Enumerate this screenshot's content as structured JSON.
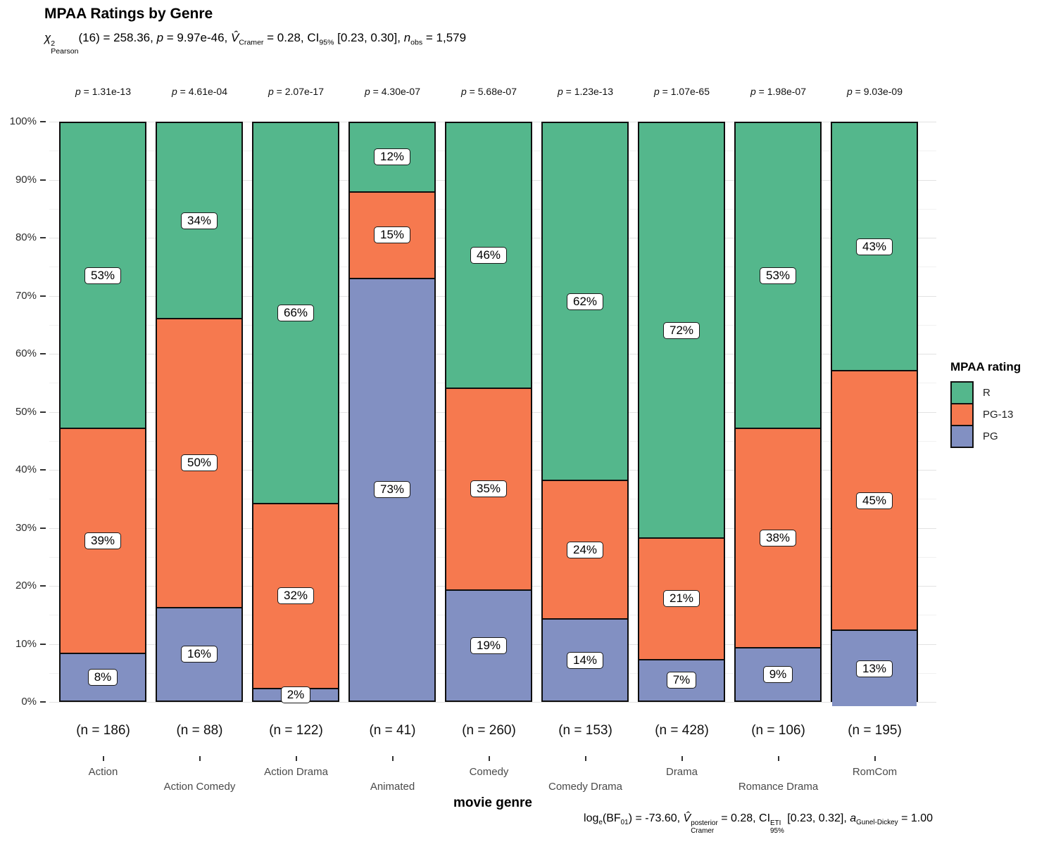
{
  "header": {
    "title": "MPAA Ratings by Genre"
  },
  "subtitle_tokens": [
    {
      "t": "χ",
      "cls": "it"
    },
    {
      "sup": "2",
      "sub": "Pearson"
    },
    {
      "t": "(16) = 258.36, "
    },
    {
      "t": "p",
      "cls": "it"
    },
    {
      "t": " = 9.97e-46, "
    },
    {
      "t": "V̂",
      "cls": "it"
    },
    {
      "sub": "Cramer"
    },
    {
      "t": " = 0.28, CI"
    },
    {
      "sub": "95%"
    },
    {
      "t": " [0.23, 0.30], "
    },
    {
      "t": "n",
      "cls": "it"
    },
    {
      "sub": "obs"
    },
    {
      "t": " = 1,579"
    }
  ],
  "caption_tokens": [
    {
      "t": "log"
    },
    {
      "sub": "e"
    },
    {
      "t": "(BF"
    },
    {
      "sub": "01"
    },
    {
      "t": ") = -73.60, "
    },
    {
      "t": "V̂",
      "cls": "it"
    },
    {
      "sup": "posterior",
      "sub": "Cramer"
    },
    {
      "t": " = 0.28, CI"
    },
    {
      "sup": "ETI",
      "sub": "95%"
    },
    {
      "t": " [0.23, 0.32], "
    },
    {
      "t": "a",
      "cls": "it"
    },
    {
      "sub": "Gunel-Dickey"
    },
    {
      "t": " = 1.00"
    }
  ],
  "p_prefix": "p",
  "legend": {
    "title": "MPAA rating",
    "entries": [
      {
        "label": "R",
        "color": "#54B78C"
      },
      {
        "label": "PG-13",
        "color": "#F6794F"
      },
      {
        "label": "PG",
        "color": "#8290C2"
      }
    ]
  },
  "x_axis": {
    "label": "movie genre"
  },
  "y_axis": {
    "tick_labels": [
      "0%",
      "10%",
      "20%",
      "30%",
      "40%",
      "50%",
      "60%",
      "70%",
      "80%",
      "90%",
      "100%"
    ]
  },
  "chart_data": {
    "type": "bar",
    "subtype": "100%-stacked-vertical",
    "title": "MPAA Ratings by Genre",
    "xlabel": "movie genre",
    "ylabel": "",
    "ylim": [
      0,
      100
    ],
    "grid": "on",
    "legend_position": "right",
    "categories": [
      "Action",
      "Action Comedy",
      "Action Drama",
      "Animated",
      "Comedy",
      "Comedy Drama",
      "Drama",
      "Romance Drama",
      "RomCom"
    ],
    "series": [
      {
        "name": "R",
        "color": "#54B78C",
        "values": [
          53,
          34,
          66,
          12,
          46,
          62,
          72,
          53,
          43
        ]
      },
      {
        "name": "PG-13",
        "color": "#F6794F",
        "values": [
          39,
          50,
          32,
          15,
          35,
          24,
          21,
          38,
          45
        ]
      },
      {
        "name": "PG",
        "color": "#8290C2",
        "values": [
          8,
          16,
          2,
          73,
          19,
          14,
          7,
          9,
          13
        ]
      }
    ],
    "genres": [
      {
        "label": "Action",
        "row": 1,
        "n_label": "(n = 186)",
        "p_value": "= 1.31e-13",
        "segments": [
          {
            "rating": "R",
            "pct": 53,
            "text": "53%"
          },
          {
            "rating": "PG-13",
            "pct": 39,
            "text": "39%"
          },
          {
            "rating": "PG",
            "pct": 8,
            "text": "8%"
          }
        ]
      },
      {
        "label": "Action Comedy",
        "row": 2,
        "n_label": "(n = 88)",
        "p_value": "= 4.61e-04",
        "segments": [
          {
            "rating": "R",
            "pct": 34,
            "text": "34%"
          },
          {
            "rating": "PG-13",
            "pct": 50,
            "text": "50%"
          },
          {
            "rating": "PG",
            "pct": 16,
            "text": "16%"
          }
        ]
      },
      {
        "label": "Action Drama",
        "row": 1,
        "n_label": "(n = 122)",
        "p_value": "= 2.07e-17",
        "segments": [
          {
            "rating": "R",
            "pct": 66,
            "text": "66%"
          },
          {
            "rating": "PG-13",
            "pct": 32,
            "text": "32%"
          },
          {
            "rating": "PG",
            "pct": 2,
            "text": "2%"
          }
        ]
      },
      {
        "label": "Animated",
        "row": 2,
        "n_label": "(n = 41)",
        "p_value": "= 4.30e-07",
        "segments": [
          {
            "rating": "R",
            "pct": 12,
            "text": "12%"
          },
          {
            "rating": "PG-13",
            "pct": 15,
            "text": "15%"
          },
          {
            "rating": "PG",
            "pct": 73,
            "text": "73%"
          }
        ]
      },
      {
        "label": "Comedy",
        "row": 1,
        "n_label": "(n = 260)",
        "p_value": "= 5.68e-07",
        "segments": [
          {
            "rating": "R",
            "pct": 46,
            "text": "46%"
          },
          {
            "rating": "PG-13",
            "pct": 35,
            "text": "35%"
          },
          {
            "rating": "PG",
            "pct": 19,
            "text": "19%"
          }
        ]
      },
      {
        "label": "Comedy Drama",
        "row": 2,
        "n_label": "(n = 153)",
        "p_value": "= 1.23e-13",
        "segments": [
          {
            "rating": "R",
            "pct": 62,
            "text": "62%"
          },
          {
            "rating": "PG-13",
            "pct": 24,
            "text": "24%"
          },
          {
            "rating": "PG",
            "pct": 14,
            "text": "14%"
          }
        ]
      },
      {
        "label": "Drama",
        "row": 1,
        "n_label": "(n = 428)",
        "p_value": "= 1.07e-65",
        "segments": [
          {
            "rating": "R",
            "pct": 72,
            "text": "72%"
          },
          {
            "rating": "PG-13",
            "pct": 21,
            "text": "21%"
          },
          {
            "rating": "PG",
            "pct": 7,
            "text": "7%"
          }
        ]
      },
      {
        "label": "Romance Drama",
        "row": 2,
        "n_label": "(n = 106)",
        "p_value": "= 1.98e-07",
        "segments": [
          {
            "rating": "R",
            "pct": 53,
            "text": "53%"
          },
          {
            "rating": "PG-13",
            "pct": 38,
            "text": "38%"
          },
          {
            "rating": "PG",
            "pct": 9,
            "text": "9%"
          }
        ]
      },
      {
        "label": "RomCom",
        "row": 1,
        "n_label": "(n = 195)",
        "p_value": "= 9.03e-09",
        "segments": [
          {
            "rating": "R",
            "pct": 43,
            "text": "43%"
          },
          {
            "rating": "PG-13",
            "pct": 45,
            "text": "45%"
          },
          {
            "rating": "PG",
            "pct": 13,
            "text": "13%"
          }
        ]
      }
    ]
  }
}
